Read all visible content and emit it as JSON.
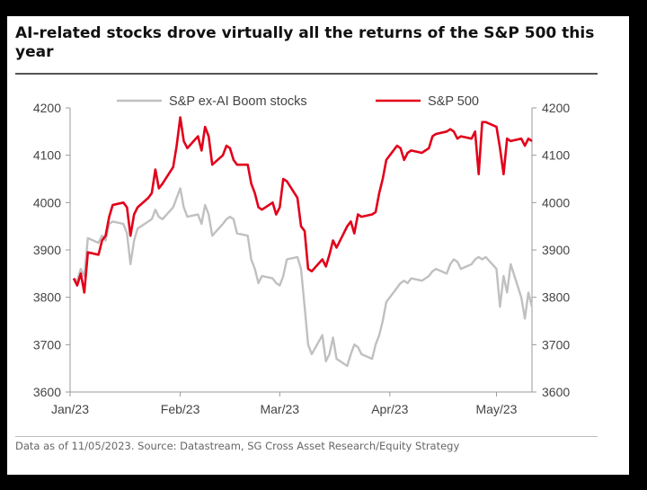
{
  "title": "AI-related stocks drove virtually all the returns of the S&P 500 this year",
  "source": "Data as of 11/05/2023. Source: Datastream, SG Cross Asset Research/Equity Strategy",
  "chart_data": {
    "type": "line",
    "title": "AI-related stocks drove virtually all the returns of the S&P 500 this year",
    "ylim": [
      3600,
      4200
    ],
    "yticks": [
      3600,
      3700,
      3800,
      3900,
      4000,
      4100,
      4200
    ],
    "x_tick_labels": [
      "Jan/23",
      "Feb/23",
      "Mar/23",
      "Apr/23",
      "May/23"
    ],
    "x_tick_dates": [
      "2023-01-01",
      "2023-02-01",
      "2023-03-01",
      "2023-04-01",
      "2023-05-01"
    ],
    "xlim": [
      "2023-01-01",
      "2023-05-11"
    ],
    "legend_position": "top",
    "grid": false,
    "series": [
      {
        "name": "S&P ex-AI Boom stocks",
        "color": "#c0c0c0",
        "x": [
          "2023-01-02",
          "2023-01-03",
          "2023-01-04",
          "2023-01-05",
          "2023-01-06",
          "2023-01-09",
          "2023-01-10",
          "2023-01-11",
          "2023-01-12",
          "2023-01-13",
          "2023-01-16",
          "2023-01-17",
          "2023-01-18",
          "2023-01-19",
          "2023-01-20",
          "2023-01-23",
          "2023-01-24",
          "2023-01-25",
          "2023-01-26",
          "2023-01-27",
          "2023-01-30",
          "2023-01-31",
          "2023-02-01",
          "2023-02-02",
          "2023-02-03",
          "2023-02-06",
          "2023-02-07",
          "2023-02-08",
          "2023-02-09",
          "2023-02-10",
          "2023-02-13",
          "2023-02-14",
          "2023-02-15",
          "2023-02-16",
          "2023-02-17",
          "2023-02-20",
          "2023-02-21",
          "2023-02-22",
          "2023-02-23",
          "2023-02-24",
          "2023-02-27",
          "2023-02-28",
          "2023-03-01",
          "2023-03-02",
          "2023-03-03",
          "2023-03-06",
          "2023-03-07",
          "2023-03-08",
          "2023-03-09",
          "2023-03-10",
          "2023-03-13",
          "2023-03-14",
          "2023-03-15",
          "2023-03-16",
          "2023-03-17",
          "2023-03-20",
          "2023-03-21",
          "2023-03-22",
          "2023-03-23",
          "2023-03-24",
          "2023-03-27",
          "2023-03-28",
          "2023-03-29",
          "2023-03-30",
          "2023-03-31",
          "2023-04-03",
          "2023-04-04",
          "2023-04-05",
          "2023-04-06",
          "2023-04-07",
          "2023-04-10",
          "2023-04-11",
          "2023-04-12",
          "2023-04-13",
          "2023-04-14",
          "2023-04-17",
          "2023-04-18",
          "2023-04-19",
          "2023-04-20",
          "2023-04-21",
          "2023-04-24",
          "2023-04-25",
          "2023-04-26",
          "2023-04-27",
          "2023-04-28",
          "2023-05-01",
          "2023-05-02",
          "2023-05-03",
          "2023-05-04",
          "2023-05-05",
          "2023-05-08",
          "2023-05-09",
          "2023-05-10",
          "2023-05-11"
        ],
        "values": [
          3840,
          3835,
          3860,
          3845,
          3925,
          3915,
          3930,
          3920,
          3955,
          3960,
          3955,
          3935,
          3870,
          3920,
          3945,
          3960,
          3965,
          3985,
          3970,
          3965,
          3990,
          4010,
          4030,
          3990,
          3970,
          3975,
          3955,
          3995,
          3975,
          3930,
          3955,
          3965,
          3970,
          3965,
          3935,
          3930,
          3880,
          3860,
          3830,
          3845,
          3840,
          3830,
          3825,
          3845,
          3880,
          3885,
          3860,
          3780,
          3700,
          3680,
          3720,
          3665,
          3680,
          3715,
          3670,
          3655,
          3680,
          3700,
          3695,
          3680,
          3670,
          3700,
          3720,
          3750,
          3790,
          3820,
          3830,
          3835,
          3830,
          3840,
          3835,
          3840,
          3845,
          3855,
          3860,
          3850,
          3870,
          3880,
          3875,
          3860,
          3870,
          3880,
          3885,
          3880,
          3885,
          3860,
          3780,
          3845,
          3810,
          3870,
          3800,
          3755,
          3810,
          3780
        ]
      },
      {
        "name": "S&P 500",
        "color": "#e2001a",
        "x": [
          "2023-01-02",
          "2023-01-03",
          "2023-01-04",
          "2023-01-05",
          "2023-01-06",
          "2023-01-09",
          "2023-01-10",
          "2023-01-11",
          "2023-01-12",
          "2023-01-13",
          "2023-01-16",
          "2023-01-17",
          "2023-01-18",
          "2023-01-19",
          "2023-01-20",
          "2023-01-23",
          "2023-01-24",
          "2023-01-25",
          "2023-01-26",
          "2023-01-27",
          "2023-01-30",
          "2023-01-31",
          "2023-02-01",
          "2023-02-02",
          "2023-02-03",
          "2023-02-06",
          "2023-02-07",
          "2023-02-08",
          "2023-02-09",
          "2023-02-10",
          "2023-02-13",
          "2023-02-14",
          "2023-02-15",
          "2023-02-16",
          "2023-02-17",
          "2023-02-20",
          "2023-02-21",
          "2023-02-22",
          "2023-02-23",
          "2023-02-24",
          "2023-02-27",
          "2023-02-28",
          "2023-03-01",
          "2023-03-02",
          "2023-03-03",
          "2023-03-06",
          "2023-03-07",
          "2023-03-08",
          "2023-03-09",
          "2023-03-10",
          "2023-03-13",
          "2023-03-14",
          "2023-03-15",
          "2023-03-16",
          "2023-03-17",
          "2023-03-20",
          "2023-03-21",
          "2023-03-22",
          "2023-03-23",
          "2023-03-24",
          "2023-03-27",
          "2023-03-28",
          "2023-03-29",
          "2023-03-30",
          "2023-03-31",
          "2023-04-03",
          "2023-04-04",
          "2023-04-05",
          "2023-04-06",
          "2023-04-07",
          "2023-04-10",
          "2023-04-11",
          "2023-04-12",
          "2023-04-13",
          "2023-04-14",
          "2023-04-17",
          "2023-04-18",
          "2023-04-19",
          "2023-04-20",
          "2023-04-21",
          "2023-04-24",
          "2023-04-25",
          "2023-04-26",
          "2023-04-27",
          "2023-04-28",
          "2023-05-01",
          "2023-05-02",
          "2023-05-03",
          "2023-05-04",
          "2023-05-05",
          "2023-05-08",
          "2023-05-09",
          "2023-05-10",
          "2023-05-11"
        ],
        "values": [
          3840,
          3825,
          3850,
          3810,
          3895,
          3890,
          3920,
          3930,
          3970,
          3995,
          4000,
          3990,
          3930,
          3975,
          3990,
          4010,
          4020,
          4070,
          4030,
          4040,
          4075,
          4120,
          4180,
          4130,
          4115,
          4140,
          4110,
          4160,
          4140,
          4080,
          4100,
          4120,
          4115,
          4090,
          4080,
          4080,
          4040,
          4020,
          3990,
          3985,
          4000,
          3975,
          3990,
          4050,
          4045,
          4010,
          3950,
          3940,
          3860,
          3855,
          3880,
          3865,
          3890,
          3920,
          3905,
          3950,
          3960,
          3935,
          3975,
          3970,
          3975,
          3980,
          4020,
          4050,
          4090,
          4120,
          4115,
          4090,
          4105,
          4110,
          4105,
          4110,
          4115,
          4140,
          4145,
          4150,
          4155,
          4150,
          4135,
          4140,
          4135,
          4150,
          4060,
          4170,
          4170,
          4160,
          4115,
          4060,
          4135,
          4130,
          4135,
          4120,
          4135,
          4130
        ]
      }
    ]
  },
  "colors": {
    "background": "#000000",
    "card": "#ffffff",
    "axis": "#9a9a9a",
    "text": "#444444"
  }
}
